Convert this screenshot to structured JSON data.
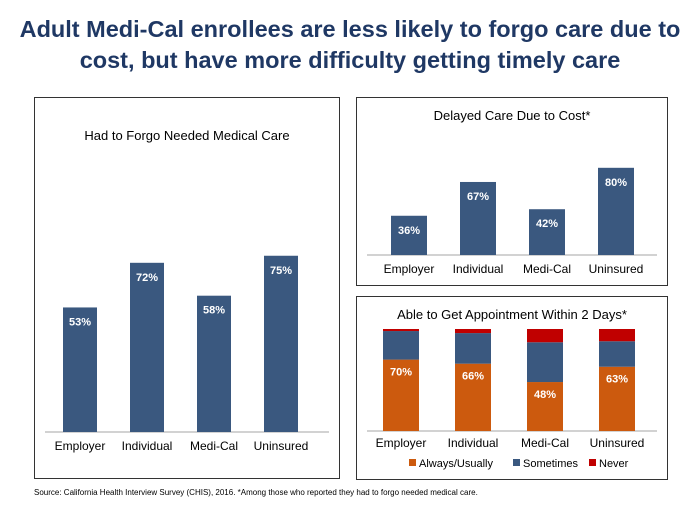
{
  "title_line1": "Adult Medi-Cal enrollees are less likely to forgo care due to",
  "title_line2": "cost, but have more difficulty getting timely care",
  "source": "Source: California Health Interview Survey (CHIS), 2016. *Among those who reported they had to forgo needed medical care.",
  "colors": {
    "title": "#1f3864",
    "bar_blue": "#3a587f",
    "bar_blue_light": "#4a6a90",
    "always": "#cc5a0e",
    "sometimes": "#3a587f",
    "never": "#c00000"
  },
  "chart_data": [
    {
      "type": "bar",
      "title": "Had to Forgo Needed Medical Care",
      "categories": [
        "Employer",
        "Individual",
        "Medi-Cal",
        "Uninsured"
      ],
      "values": [
        53,
        72,
        58,
        75
      ],
      "labels": [
        "53%",
        "72%",
        "58%",
        "75%"
      ],
      "ylim": [
        0,
        100
      ]
    },
    {
      "type": "bar",
      "title": "Delayed Care Due to Cost*",
      "categories": [
        "Employer",
        "Individual",
        "Medi-Cal",
        "Uninsured"
      ],
      "values": [
        36,
        67,
        42,
        80
      ],
      "labels": [
        "36%",
        "67%",
        "42%",
        "80%"
      ],
      "ylim": [
        0,
        100
      ]
    },
    {
      "type": "bar",
      "stacked": true,
      "title": "Able to Get Appointment Within 2 Days*",
      "categories": [
        "Employer",
        "Individual",
        "Medi-Cal",
        "Uninsured"
      ],
      "series": [
        {
          "name": "Always/Usually",
          "values": [
            70,
            66,
            48,
            63
          ],
          "labels": [
            "70%",
            "66%",
            "48%",
            "63%"
          ]
        },
        {
          "name": "Sometimes",
          "values": [
            28,
            30,
            39,
            25
          ]
        },
        {
          "name": "Never",
          "values": [
            2,
            4,
            13,
            12
          ]
        }
      ],
      "ylim": [
        0,
        100
      ]
    }
  ]
}
